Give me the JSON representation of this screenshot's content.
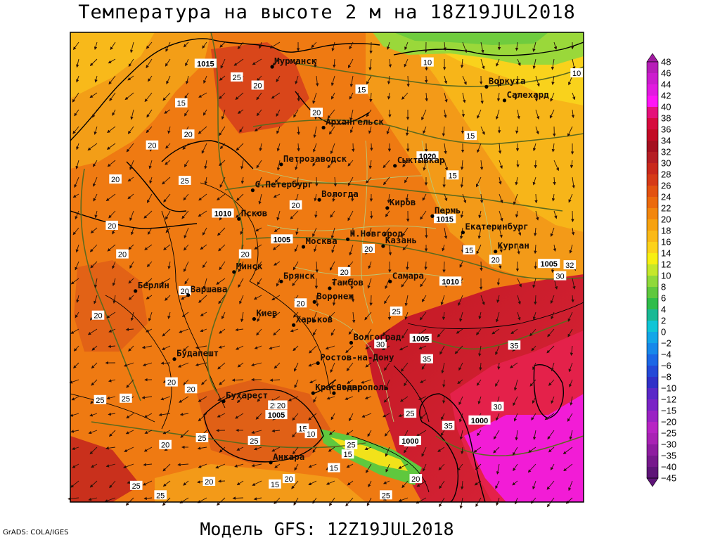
{
  "header": {
    "title": "Температура на высоте 2 м на 18Z19JUL2018"
  },
  "footer": {
    "model": "Модель GFS: 12Z19JUL2018",
    "credit": "GrADS: COLA/IGES"
  },
  "colors": {
    "background_warm": "#f07d12",
    "hot_red": "#d81a2e",
    "extreme_magenta": "#f21cd6",
    "cool_yellow": "#f5e80a",
    "green": "#88dd22",
    "isobar": "#5c6a1e",
    "borders": "#000000",
    "admin_borders": "#b8c878"
  },
  "cities": [
    {
      "name": "Мурманск",
      "lon": 33.1,
      "lat": 68.97
    },
    {
      "name": "Воркута",
      "lon": 64.0,
      "lat": 67.5
    },
    {
      "name": "Салехард",
      "lon": 66.6,
      "lat": 66.5
    },
    {
      "name": "Архангельск",
      "lon": 40.5,
      "lat": 64.5
    },
    {
      "name": "Сыктывкар",
      "lon": 50.8,
      "lat": 61.7
    },
    {
      "name": "Петрозаводск",
      "lon": 34.4,
      "lat": 61.8
    },
    {
      "name": "С.Петербург",
      "lon": 30.3,
      "lat": 59.9
    },
    {
      "name": "Вологда",
      "lon": 39.9,
      "lat": 59.2
    },
    {
      "name": "Киров",
      "lon": 49.7,
      "lat": 58.6
    },
    {
      "name": "Пермь",
      "lon": 56.2,
      "lat": 58.0
    },
    {
      "name": "Екатеринбург",
      "lon": 60.6,
      "lat": 56.8
    },
    {
      "name": "Курган",
      "lon": 65.3,
      "lat": 55.4
    },
    {
      "name": "Псков",
      "lon": 28.3,
      "lat": 57.8
    },
    {
      "name": "Москва",
      "lon": 37.6,
      "lat": 55.75
    },
    {
      "name": "Н.Новгород",
      "lon": 44.0,
      "lat": 56.3
    },
    {
      "name": "Казань",
      "lon": 49.1,
      "lat": 55.8
    },
    {
      "name": "Берлин",
      "lon": 13.4,
      "lat": 52.5
    },
    {
      "name": "Варшава",
      "lon": 21.0,
      "lat": 52.2
    },
    {
      "name": "Минск",
      "lon": 27.6,
      "lat": 53.9
    },
    {
      "name": "Брянск",
      "lon": 34.4,
      "lat": 53.2
    },
    {
      "name": "Тамбов",
      "lon": 41.4,
      "lat": 52.7
    },
    {
      "name": "Самара",
      "lon": 50.1,
      "lat": 53.2
    },
    {
      "name": "Воронеж",
      "lon": 39.2,
      "lat": 51.7
    },
    {
      "name": "Киев",
      "lon": 30.5,
      "lat": 50.45
    },
    {
      "name": "Будапешт",
      "lon": 19.0,
      "lat": 47.5
    },
    {
      "name": "Харьков",
      "lon": 36.2,
      "lat": 50.0
    },
    {
      "name": "Волгоград",
      "lon": 44.5,
      "lat": 48.7
    },
    {
      "name": "Ростов-на-Дону",
      "lon": 39.7,
      "lat": 47.2
    },
    {
      "name": "Бухарест",
      "lon": 26.1,
      "lat": 44.4
    },
    {
      "name": "Краснодар",
      "lon": 39.0,
      "lat": 45.0
    },
    {
      "name": "Ставрополь",
      "lon": 42.0,
      "lat": 45.0
    },
    {
      "name": "Анкара",
      "lon": 32.9,
      "lat": 39.9
    }
  ],
  "isotherm_labels": [
    {
      "text": "15",
      "lon": 20.0,
      "lat": 66.3
    },
    {
      "text": "20",
      "lon": 15.8,
      "lat": 63.2
    },
    {
      "text": "20",
      "lon": 21.0,
      "lat": 64.0
    },
    {
      "text": "25",
      "lon": 28.0,
      "lat": 68.2
    },
    {
      "text": "20",
      "lon": 31.0,
      "lat": 67.6
    },
    {
      "text": "20",
      "lon": 10.5,
      "lat": 60.7
    },
    {
      "text": "25",
      "lon": 20.5,
      "lat": 60.6
    },
    {
      "text": "20",
      "lon": 39.5,
      "lat": 65.6
    },
    {
      "text": "15",
      "lon": 46.0,
      "lat": 67.3
    },
    {
      "text": "10",
      "lon": 55.5,
      "lat": 69.3
    },
    {
      "text": "15",
      "lon": 61.7,
      "lat": 63.9
    },
    {
      "text": "10",
      "lon": 77.0,
      "lat": 68.5
    },
    {
      "text": "15",
      "lon": 59.1,
      "lat": 61.0
    },
    {
      "text": "20",
      "lon": 36.5,
      "lat": 58.8
    },
    {
      "text": "20",
      "lon": 10.0,
      "lat": 57.3
    },
    {
      "text": "20",
      "lon": 11.5,
      "lat": 55.2
    },
    {
      "text": "20",
      "lon": 29.2,
      "lat": 55.2
    },
    {
      "text": "20",
      "lon": 47.0,
      "lat": 55.6
    },
    {
      "text": "20",
      "lon": 43.5,
      "lat": 53.9
    },
    {
      "text": "15",
      "lon": 61.5,
      "lat": 55.5
    },
    {
      "text": "20",
      "lon": 65.3,
      "lat": 54.8
    },
    {
      "text": "20",
      "lon": 20.5,
      "lat": 52.5
    },
    {
      "text": "20",
      "lon": 37.2,
      "lat": 51.6
    },
    {
      "text": "25",
      "lon": 51.0,
      "lat": 51.0
    },
    {
      "text": "30",
      "lon": 48.7,
      "lat": 48.6
    },
    {
      "text": "35",
      "lon": 55.4,
      "lat": 47.5
    },
    {
      "text": "35",
      "lon": 68.0,
      "lat": 48.5
    },
    {
      "text": "30",
      "lon": 65.6,
      "lat": 44.0
    },
    {
      "text": "35",
      "lon": 58.5,
      "lat": 42.6
    },
    {
      "text": "30",
      "lon": 53.0,
      "lat": 41.4
    },
    {
      "text": "20",
      "lon": 18.6,
      "lat": 45.8
    },
    {
      "text": "20",
      "lon": 21.4,
      "lat": 45.3
    },
    {
      "text": "25",
      "lon": 12.0,
      "lat": 44.6
    },
    {
      "text": "25",
      "lon": 33.4,
      "lat": 44.1
    },
    {
      "text": "20",
      "lon": 34.4,
      "lat": 44.1
    },
    {
      "text": "25",
      "lon": 23.0,
      "lat": 41.7
    },
    {
      "text": "25",
      "lon": 30.5,
      "lat": 41.5
    },
    {
      "text": "15",
      "lon": 37.5,
      "lat": 42.4
    },
    {
      "text": "10",
      "lon": 38.7,
      "lat": 42.0
    },
    {
      "text": "25",
      "lon": 44.5,
      "lat": 41.2
    },
    {
      "text": "25",
      "lon": 53.0,
      "lat": 43.5
    },
    {
      "text": "20",
      "lon": 17.7,
      "lat": 41.2
    },
    {
      "text": "25",
      "lon": 13.5,
      "lat": 38.2
    },
    {
      "text": "25",
      "lon": 17.0,
      "lat": 37.5
    },
    {
      "text": "20",
      "lon": 24.0,
      "lat": 38.5
    },
    {
      "text": "15",
      "lon": 33.5,
      "lat": 38.3
    },
    {
      "text": "20",
      "lon": 35.5,
      "lat": 38.7
    },
    {
      "text": "15",
      "lon": 42.0,
      "lat": 39.5
    },
    {
      "text": "15",
      "lon": 44.0,
      "lat": 40.5
    },
    {
      "text": "25",
      "lon": 49.5,
      "lat": 37.5
    },
    {
      "text": "20",
      "lon": 53.8,
      "lat": 38.7
    },
    {
      "text": "20",
      "lon": 8.0,
      "lat": 50.7
    },
    {
      "text": "30",
      "lon": 74.6,
      "lat": 53.6
    },
    {
      "text": "32",
      "lon": 76.0,
      "lat": 54.4
    },
    {
      "text": "25",
      "lon": 8.3,
      "lat": 44.5
    }
  ],
  "isobar_labels": [
    {
      "text": "1015",
      "lon": 23.5,
      "lat": 69.2
    },
    {
      "text": "1020",
      "lon": 55.5,
      "lat": 62.4
    },
    {
      "text": "1015",
      "lon": 58.0,
      "lat": 57.8
    },
    {
      "text": "1010",
      "lon": 26.0,
      "lat": 58.2
    },
    {
      "text": "1005",
      "lon": 34.5,
      "lat": 56.3
    },
    {
      "text": "1010",
      "lon": 58.8,
      "lat": 53.2
    },
    {
      "text": "1005",
      "lon": 73.0,
      "lat": 54.5
    },
    {
      "text": "1005",
      "lon": 54.5,
      "lat": 49.0
    },
    {
      "text": "1005",
      "lon": 33.7,
      "lat": 43.4
    },
    {
      "text": "1000",
      "lon": 53.0,
      "lat": 41.5
    },
    {
      "text": "1000",
      "lon": 63.0,
      "lat": 43.0
    }
  ],
  "legend": {
    "ticks": [
      "48",
      "46",
      "44",
      "42",
      "40",
      "38",
      "36",
      "34",
      "32",
      "30",
      "28",
      "26",
      "24",
      "22",
      "20",
      "18",
      "16",
      "14",
      "12",
      "10",
      "8",
      "6",
      "4",
      "2",
      "0",
      "−2",
      "−4",
      "−6",
      "−8",
      "−10",
      "−12",
      "−15",
      "−20",
      "−25",
      "−30",
      "−35",
      "−40",
      "−45"
    ],
    "colors": [
      "#a01aa0",
      "#b71db8",
      "#cc1cce",
      "#e21ae0",
      "#ff14f5",
      "#e5107a",
      "#d60a3e",
      "#c20a25",
      "#a50f1f",
      "#b51d24",
      "#c9281c",
      "#d63a17",
      "#e35210",
      "#ec6a0c",
      "#f2860d",
      "#f7a20f",
      "#fab916",
      "#fcd21a",
      "#f7ef12",
      "#c5e72a",
      "#8fd93a",
      "#5fc83e",
      "#2fbd4a",
      "#18b995",
      "#0fc5d6",
      "#12a6e8",
      "#1688ea",
      "#1b67e6",
      "#2349d8",
      "#3030c8",
      "#5a28c8",
      "#7a24c6",
      "#9a22c4",
      "#b724c4",
      "#a822b4",
      "#8e1ca0",
      "#76188c",
      "#5e1478"
    ]
  }
}
